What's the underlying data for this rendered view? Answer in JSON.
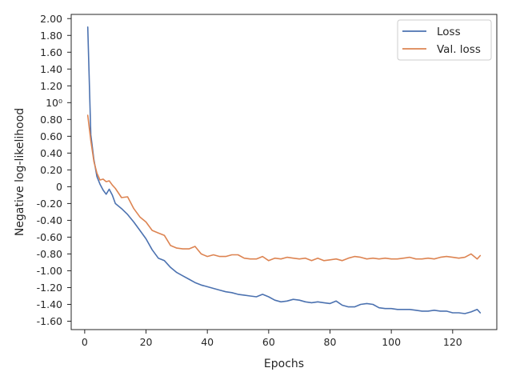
{
  "chart_data": {
    "type": "line",
    "xlabel": "Epochs",
    "ylabel": "Negative log-likelihood",
    "xlim": [
      -4.4,
      134.4
    ],
    "ylim": [
      -1.7,
      2.05
    ],
    "x_ticks": [
      0,
      20,
      40,
      60,
      80,
      100,
      120
    ],
    "x_tick_labels": [
      "0",
      "20",
      "40",
      "60",
      "80",
      "100",
      "120"
    ],
    "y_ticks": [
      2.0,
      1.8,
      1.6,
      1.4,
      1.2,
      1.0,
      0.8,
      0.6,
      0.4,
      0.2,
      0.0,
      -0.2,
      -0.4,
      -0.6,
      -0.8,
      -1.0,
      -1.2,
      -1.4,
      -1.6
    ],
    "y_tick_labels": [
      "2.00",
      "1.80",
      "1.60",
      "1.40",
      "1.20",
      "10⁰",
      "0.80",
      "0.60",
      "0.40",
      "0.20",
      "0",
      "-0.20",
      "-0.40",
      "-0.60",
      "-0.80",
      "-1.00",
      "-1.20",
      "-1.40",
      "-1.60"
    ],
    "grid": false,
    "legend_position": "top-right",
    "colors": {
      "Loss": "#4c72b0",
      "Val. loss": "#dd8452",
      "axis": "#262626"
    },
    "series": [
      {
        "name": "Loss",
        "x": [
          1,
          2,
          3,
          4,
          5,
          6,
          7,
          8,
          9,
          10,
          12,
          14,
          16,
          18,
          20,
          22,
          24,
          26,
          28,
          30,
          32,
          34,
          36,
          38,
          40,
          42,
          44,
          46,
          48,
          50,
          52,
          54,
          56,
          58,
          60,
          62,
          64,
          66,
          68,
          70,
          72,
          74,
          76,
          78,
          80,
          82,
          84,
          86,
          88,
          90,
          92,
          94,
          96,
          98,
          100,
          102,
          104,
          106,
          108,
          110,
          112,
          114,
          116,
          118,
          120,
          122,
          124,
          126,
          128,
          129
        ],
        "values": [
          1.9,
          0.62,
          0.32,
          0.12,
          0.03,
          -0.04,
          -0.09,
          -0.03,
          -0.1,
          -0.2,
          -0.26,
          -0.33,
          -0.42,
          -0.52,
          -0.62,
          -0.75,
          -0.85,
          -0.88,
          -0.96,
          -1.02,
          -1.06,
          -1.1,
          -1.14,
          -1.17,
          -1.19,
          -1.21,
          -1.23,
          -1.25,
          -1.26,
          -1.28,
          -1.29,
          -1.3,
          -1.31,
          -1.28,
          -1.31,
          -1.35,
          -1.37,
          -1.36,
          -1.34,
          -1.35,
          -1.37,
          -1.38,
          -1.37,
          -1.38,
          -1.39,
          -1.36,
          -1.41,
          -1.43,
          -1.43,
          -1.4,
          -1.39,
          -1.4,
          -1.44,
          -1.45,
          -1.45,
          -1.46,
          -1.46,
          -1.46,
          -1.47,
          -1.48,
          -1.48,
          -1.47,
          -1.48,
          -1.48,
          -1.5,
          -1.5,
          -1.51,
          -1.49,
          -1.46,
          -1.5
        ]
      },
      {
        "name": "Val. loss",
        "x": [
          1,
          2,
          3,
          4,
          5,
          6,
          7,
          8,
          9,
          10,
          12,
          14,
          16,
          18,
          20,
          22,
          24,
          26,
          28,
          30,
          32,
          34,
          36,
          38,
          40,
          42,
          44,
          46,
          48,
          50,
          52,
          54,
          56,
          58,
          60,
          62,
          64,
          66,
          68,
          70,
          72,
          74,
          76,
          78,
          80,
          82,
          84,
          86,
          88,
          90,
          92,
          94,
          96,
          98,
          100,
          102,
          104,
          106,
          108,
          110,
          112,
          114,
          116,
          118,
          120,
          122,
          124,
          126,
          128,
          129
        ],
        "values": [
          0.85,
          0.55,
          0.3,
          0.16,
          0.08,
          0.09,
          0.06,
          0.07,
          0.02,
          -0.02,
          -0.13,
          -0.12,
          -0.26,
          -0.36,
          -0.42,
          -0.52,
          -0.55,
          -0.58,
          -0.7,
          -0.73,
          -0.74,
          -0.74,
          -0.71,
          -0.8,
          -0.83,
          -0.81,
          -0.83,
          -0.83,
          -0.81,
          -0.81,
          -0.85,
          -0.86,
          -0.86,
          -0.83,
          -0.88,
          -0.85,
          -0.86,
          -0.84,
          -0.85,
          -0.86,
          -0.85,
          -0.88,
          -0.85,
          -0.88,
          -0.87,
          -0.86,
          -0.88,
          -0.85,
          -0.83,
          -0.84,
          -0.86,
          -0.85,
          -0.86,
          -0.85,
          -0.86,
          -0.86,
          -0.85,
          -0.84,
          -0.86,
          -0.86,
          -0.85,
          -0.86,
          -0.84,
          -0.83,
          -0.84,
          -0.85,
          -0.84,
          -0.8,
          -0.86,
          -0.82
        ]
      }
    ]
  }
}
